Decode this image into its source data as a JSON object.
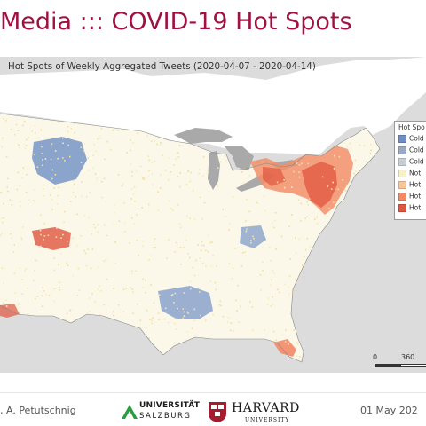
{
  "slide": {
    "title": "Media ::: COVID-19 Hot Spots"
  },
  "map": {
    "heading": "Hot Spots of Weekly Aggregated Tweets (2020-04-07 - 2020-04-14)",
    "background_color": "#dcdcdc",
    "land_color": "#fbf8ea",
    "lake_color": "#a9a9a9"
  },
  "legend": {
    "title": "Hot Spo",
    "items": [
      {
        "label": "Cold",
        "color": "#6f8fc4"
      },
      {
        "label": "Cold",
        "color": "#9aaac4"
      },
      {
        "label": "Cold",
        "color": "#c9ced6"
      },
      {
        "label": "Not",
        "color": "#f6f1c6"
      },
      {
        "label": "Hot",
        "color": "#f8c49a"
      },
      {
        "label": "Hot",
        "color": "#f28a68"
      },
      {
        "label": "Hot",
        "color": "#e0553f"
      }
    ]
  },
  "scale": {
    "labels": [
      "0",
      "360"
    ]
  },
  "footer": {
    "authors": ", A. Petutschnig",
    "university_name": "UNIVERSITÄT",
    "university_sub": "SALZBURG",
    "harvard_name": "HARVARD",
    "harvard_sub": "UNIVERSITY",
    "date": "01 May 202"
  }
}
